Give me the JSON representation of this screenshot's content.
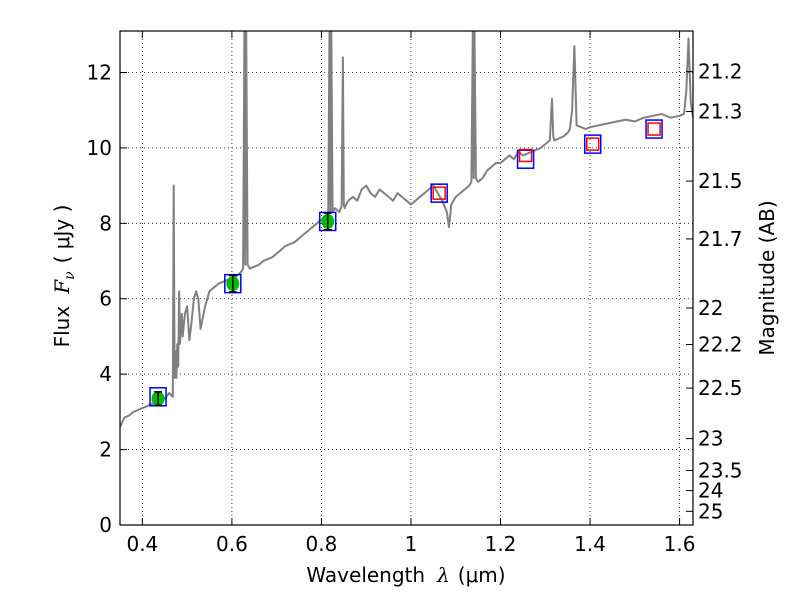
{
  "chart_data": {
    "type": "line",
    "xlabel": "Wavelength",
    "xlabel_symbol": "λ",
    "xlabel_unit": "(μm)",
    "ylabel": "Flux",
    "ylabel_symbol": "F",
    "ylabel_subscript": "ν",
    "ylabel_unit": "( μJy )",
    "y2label": "Magnitude (AB)",
    "xlim": [
      0.35,
      1.63
    ],
    "ylim": [
      0,
      13.1
    ],
    "grid": true,
    "grid_style": "dotted",
    "x_ticks": [
      0.4,
      0.6,
      0.8,
      1.0,
      1.2,
      1.4,
      1.6
    ],
    "x_tick_labels": [
      "0.4",
      "0.6",
      "0.8",
      "1",
      "1.2",
      "1.4",
      "1.6"
    ],
    "y_ticks": [
      0,
      2,
      4,
      6,
      8,
      10,
      12
    ],
    "y_tick_labels": [
      "0",
      "2",
      "4",
      "6",
      "8",
      "10",
      "12"
    ],
    "mag_ticks": [
      21.2,
      21.3,
      21.5,
      21.7,
      22,
      22.2,
      22.5,
      23,
      23.5,
      24,
      25
    ],
    "mag_tick_labels": [
      "21.2",
      "21.3",
      "21.5",
      "21.7",
      "22",
      "22.2",
      "22.5",
      "23",
      "23.5",
      "24",
      "25"
    ],
    "colors": {
      "model": "#808080",
      "model_box": "#0000ff",
      "observed_marker": "#00bb00",
      "upper_box": "#ff0000",
      "errorbar": "#000000"
    },
    "series": [
      {
        "kind": "model-spectrum",
        "x": [
          0.35,
          0.36,
          0.37,
          0.38,
          0.39,
          0.4,
          0.41,
          0.42,
          0.43,
          0.44,
          0.45,
          0.46,
          0.468,
          0.47,
          0.472,
          0.474,
          0.476,
          0.478,
          0.48,
          0.482,
          0.484,
          0.486,
          0.488,
          0.49,
          0.495,
          0.5,
          0.505,
          0.51,
          0.515,
          0.52,
          0.525,
          0.53,
          0.54,
          0.55,
          0.56,
          0.57,
          0.58,
          0.59,
          0.6,
          0.61,
          0.62,
          0.625,
          0.628,
          0.63,
          0.632,
          0.635,
          0.64,
          0.65,
          0.66,
          0.67,
          0.68,
          0.69,
          0.7,
          0.71,
          0.72,
          0.73,
          0.74,
          0.75,
          0.76,
          0.77,
          0.78,
          0.79,
          0.8,
          0.81,
          0.815,
          0.818,
          0.82,
          0.822,
          0.825,
          0.83,
          0.84,
          0.845,
          0.848,
          0.85,
          0.852,
          0.855,
          0.86,
          0.87,
          0.88,
          0.89,
          0.9,
          0.91,
          0.92,
          0.93,
          0.94,
          0.95,
          0.96,
          0.97,
          0.98,
          0.99,
          1.0,
          1.01,
          1.02,
          1.03,
          1.04,
          1.05,
          1.06,
          1.07,
          1.08,
          1.085,
          1.09,
          1.1,
          1.11,
          1.12,
          1.13,
          1.135,
          1.138,
          1.14,
          1.142,
          1.145,
          1.15,
          1.16,
          1.17,
          1.18,
          1.19,
          1.2,
          1.21,
          1.22,
          1.23,
          1.24,
          1.25,
          1.26,
          1.27,
          1.28,
          1.29,
          1.3,
          1.31,
          1.315,
          1.318,
          1.32,
          1.33,
          1.34,
          1.35,
          1.355,
          1.36,
          1.365,
          1.37,
          1.38,
          1.39,
          1.4,
          1.42,
          1.44,
          1.46,
          1.48,
          1.5,
          1.52,
          1.54,
          1.56,
          1.58,
          1.6,
          1.61,
          1.615,
          1.62,
          1.625,
          1.63
        ],
        "y": [
          2.6,
          2.85,
          2.9,
          3.0,
          3.05,
          3.1,
          3.15,
          3.2,
          3.25,
          3.3,
          3.35,
          3.5,
          3.4,
          9.0,
          3.9,
          4.6,
          3.9,
          4.8,
          4.2,
          6.2,
          4.8,
          5.2,
          5.6,
          5.0,
          5.6,
          5.8,
          4.9,
          5.4,
          6.0,
          6.2,
          6.0,
          5.2,
          5.8,
          6.2,
          6.3,
          6.4,
          6.45,
          6.5,
          6.5,
          6.6,
          6.7,
          6.8,
          13.1,
          6.9,
          13.1,
          6.9,
          6.8,
          6.85,
          6.9,
          7.0,
          7.05,
          7.1,
          7.2,
          7.3,
          7.4,
          7.45,
          7.5,
          7.6,
          7.7,
          7.8,
          7.9,
          8.0,
          8.1,
          8.15,
          8.2,
          13.1,
          8.3,
          13.1,
          8.3,
          8.4,
          8.3,
          8.45,
          12.4,
          8.5,
          8.4,
          8.5,
          8.6,
          8.7,
          8.6,
          8.9,
          9.0,
          8.8,
          8.7,
          8.9,
          8.8,
          8.7,
          8.6,
          8.8,
          8.7,
          8.6,
          8.5,
          8.6,
          8.7,
          8.8,
          8.9,
          9.0,
          8.8,
          8.6,
          8.3,
          7.9,
          8.5,
          8.7,
          8.8,
          8.9,
          9.0,
          9.1,
          13.1,
          9.2,
          13.1,
          9.2,
          9.1,
          9.2,
          9.4,
          9.5,
          9.6,
          9.6,
          9.7,
          9.8,
          9.7,
          9.9,
          9.8,
          9.85,
          9.9,
          9.95,
          10.0,
          10.1,
          10.2,
          11.3,
          10.3,
          10.2,
          10.25,
          10.3,
          10.4,
          10.5,
          11.0,
          12.7,
          10.6,
          10.55,
          10.5,
          10.55,
          10.6,
          10.65,
          10.7,
          10.75,
          10.7,
          10.8,
          10.85,
          10.9,
          10.8,
          10.85,
          10.9,
          11.5,
          12.9,
          11.2,
          10.8
        ]
      },
      {
        "kind": "model-photometry",
        "x": [
          0.435,
          0.602,
          0.814,
          1.063,
          1.256,
          1.406,
          1.543
        ],
        "y": [
          3.4,
          6.4,
          8.05,
          8.8,
          9.7,
          10.1,
          10.5
        ]
      },
      {
        "kind": "observed-photometry",
        "x": [
          0.435,
          0.602,
          0.814
        ],
        "y": [
          3.35,
          6.4,
          8.05
        ],
        "yerr": [
          0.18,
          0.22,
          0.22
        ]
      },
      {
        "kind": "upper-limit",
        "x": [
          1.063,
          1.256,
          1.406,
          1.543
        ],
        "y": [
          8.8,
          9.8,
          10.1,
          10.5
        ]
      }
    ]
  }
}
